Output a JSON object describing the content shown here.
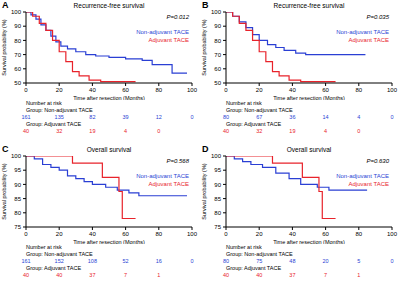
{
  "chart_data": [
    {
      "type": "line",
      "panel": "A",
      "title": "Recurrence-free survival",
      "annotation": "P=0.012",
      "x_label": "Time after resection (Months)",
      "y_label": "Survival probability (%)",
      "xlim": [
        0,
        100
      ],
      "xticks": [
        0,
        20,
        40,
        60,
        80,
        100
      ],
      "ylim": [
        50,
        100
      ],
      "yticks": [
        50,
        60,
        70,
        80,
        90,
        100
      ],
      "line_style": "step",
      "legend": "upper right",
      "series": [
        {
          "name": "Non-adjuvant TACE",
          "color": "#2a3fd4",
          "x": [
            0,
            3,
            6,
            9,
            12,
            15,
            18,
            21,
            25,
            30,
            36,
            42,
            50,
            60,
            70,
            76,
            85,
            88,
            97
          ],
          "values": [
            100,
            98,
            95,
            91,
            87,
            83,
            79,
            76,
            74,
            72,
            70,
            69,
            68,
            67,
            66,
            63,
            63,
            57,
            57
          ]
        },
        {
          "name": "Adjuvant TACE",
          "color": "#e8232b",
          "x": [
            0,
            4,
            8,
            12,
            16,
            20,
            24,
            28,
            32,
            38,
            45,
            66
          ],
          "values": [
            100,
            97,
            92,
            87,
            80,
            72,
            65,
            58,
            55,
            52,
            51,
            51
          ]
        }
      ],
      "risk_table": {
        "title": "Number at risk",
        "rows": [
          {
            "label": "Group: Non-adjuvant TACE",
            "counts": [
              161,
              135,
              82,
              39,
              12,
              0
            ]
          },
          {
            "label": "Group: Adjuvant TACE",
            "counts": [
              40,
              32,
              19,
              4,
              0
            ]
          }
        ]
      }
    },
    {
      "type": "line",
      "panel": "B",
      "title": "Recurrence-free survival",
      "annotation": "P=0.035",
      "x_label": "Time after resection (Months)",
      "y_label": "Survival probability (%)",
      "xlim": [
        0,
        100
      ],
      "xticks": [
        0,
        20,
        40,
        60,
        80,
        100
      ],
      "ylim": [
        50,
        100
      ],
      "yticks": [
        50,
        60,
        70,
        80,
        90,
        100
      ],
      "line_style": "step",
      "legend": "upper right",
      "series": [
        {
          "name": "Non-adjuvant TACE",
          "color": "#2a3fd4",
          "x": [
            0,
            4,
            8,
            12,
            16,
            20,
            25,
            30,
            35,
            42,
            48,
            84
          ],
          "values": [
            100,
            97,
            93,
            89,
            84,
            80,
            77,
            75,
            73,
            71,
            70,
            70
          ]
        },
        {
          "name": "Adjuvant TACE",
          "color": "#e8232b",
          "x": [
            0,
            4,
            8,
            12,
            16,
            20,
            24,
            28,
            32,
            38,
            45,
            66
          ],
          "values": [
            100,
            97,
            92,
            87,
            80,
            72,
            65,
            58,
            55,
            52,
            51,
            51
          ]
        }
      ],
      "risk_table": {
        "title": "Number at risk",
        "rows": [
          {
            "label": "Group: Non-adjuvant TACE",
            "counts": [
              80,
              67,
              36,
              14,
              4,
              0
            ]
          },
          {
            "label": "Group: Adjuvant TACE",
            "counts": [
              40,
              32,
              19,
              4,
              0
            ]
          }
        ]
      }
    },
    {
      "type": "line",
      "panel": "C",
      "title": "Overall survival",
      "annotation": "P=0.568",
      "x_label": "Time after resection (Months)",
      "y_label": "Survival probability (%)",
      "xlim": [
        0,
        100
      ],
      "xticks": [
        0,
        20,
        40,
        60,
        80,
        100
      ],
      "ylim": [
        75,
        100
      ],
      "yticks": [
        75,
        80,
        85,
        90,
        95,
        100
      ],
      "line_style": "step",
      "legend": "upper right",
      "series": [
        {
          "name": "Non-adjuvant TACE",
          "color": "#2a3fd4",
          "x": [
            0,
            5,
            10,
            15,
            20,
            25,
            30,
            35,
            40,
            48,
            55,
            62,
            68,
            97
          ],
          "values": [
            100,
            99,
            97,
            96,
            95,
            93,
            92,
            91,
            90,
            89,
            88,
            87,
            86,
            86
          ]
        },
        {
          "name": "Adjuvant TACE",
          "color": "#e8232b",
          "x": [
            0,
            26,
            28,
            40,
            46,
            53,
            56,
            58,
            66
          ],
          "values": [
            100,
            100,
            97.5,
            97.5,
            92.5,
            92.5,
            87.5,
            78,
            78
          ]
        }
      ],
      "risk_table": {
        "title": "Number at risk",
        "rows": [
          {
            "label": "Group: Non-adjuvant TACE",
            "counts": [
              161,
              152,
              108,
              52,
              16,
              0
            ]
          },
          {
            "label": "Group: Adjuvant TACE",
            "counts": [
              40,
              40,
              37,
              7,
              1
            ]
          }
        ]
      }
    },
    {
      "type": "line",
      "panel": "D",
      "title": "Overall survival",
      "annotation": "P=0.630",
      "x_label": "Time after resection (Months)",
      "y_label": "Survival probability (%)",
      "xlim": [
        0,
        100
      ],
      "xticks": [
        0,
        20,
        40,
        60,
        80,
        100
      ],
      "ylim": [
        75,
        100
      ],
      "yticks": [
        75,
        80,
        85,
        90,
        95,
        100
      ],
      "line_style": "step",
      "legend": "upper right",
      "series": [
        {
          "name": "Non-adjuvant TACE",
          "color": "#2a3fd4",
          "x": [
            0,
            5,
            10,
            15,
            22,
            30,
            38,
            45,
            55,
            62,
            85
          ],
          "values": [
            100,
            99,
            98,
            97,
            96,
            94,
            92,
            90,
            89,
            88,
            88
          ]
        },
        {
          "name": "Adjuvant TACE",
          "color": "#e8232b",
          "x": [
            0,
            26,
            28,
            40,
            46,
            53,
            56,
            58,
            66
          ],
          "values": [
            100,
            100,
            97.5,
            97.5,
            92.5,
            92.5,
            87.5,
            78,
            78
          ]
        }
      ],
      "risk_table": {
        "title": "Number at risk",
        "rows": [
          {
            "label": "Group: Non-adjuvant TACE",
            "counts": [
              80,
              75,
              48,
              20,
              5,
              0
            ]
          },
          {
            "label": "Group: Adjuvant TACE",
            "counts": [
              40,
              40,
              37,
              7,
              1
            ]
          }
        ]
      }
    }
  ]
}
